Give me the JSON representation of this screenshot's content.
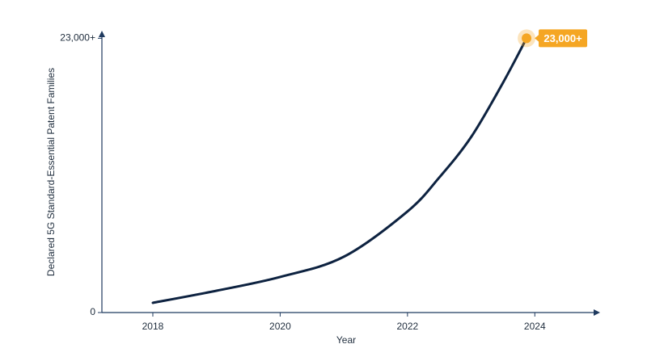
{
  "chart_data": {
    "type": "line",
    "x_label": "Year",
    "y_label": "Declared 5G Standard-Essential Patent Families",
    "x": [
      2018,
      2019,
      2020,
      2021,
      2022,
      2022.5,
      2023,
      2023.5,
      2023.87
    ],
    "series": [
      {
        "color": "#0d2240",
        "values": [
          814,
          1830,
          2985,
          4680,
          8480,
          11330,
          14720,
          19270,
          23000
        ],
        "value_labels": [
          null,
          null,
          null,
          null,
          null,
          null,
          null,
          null,
          "23,000+"
        ]
      }
    ],
    "xlim": [
      2017.2,
      2025
    ],
    "xticks": [
      2018,
      2020,
      2022,
      2024
    ],
    "ylim": [
      0,
      23500
    ],
    "yticks": [
      0,
      {
        "value": 23000,
        "label": "23,000+"
      }
    ],
    "marker_color": "#f5a623",
    "axis_color": "#1f3a5f"
  }
}
